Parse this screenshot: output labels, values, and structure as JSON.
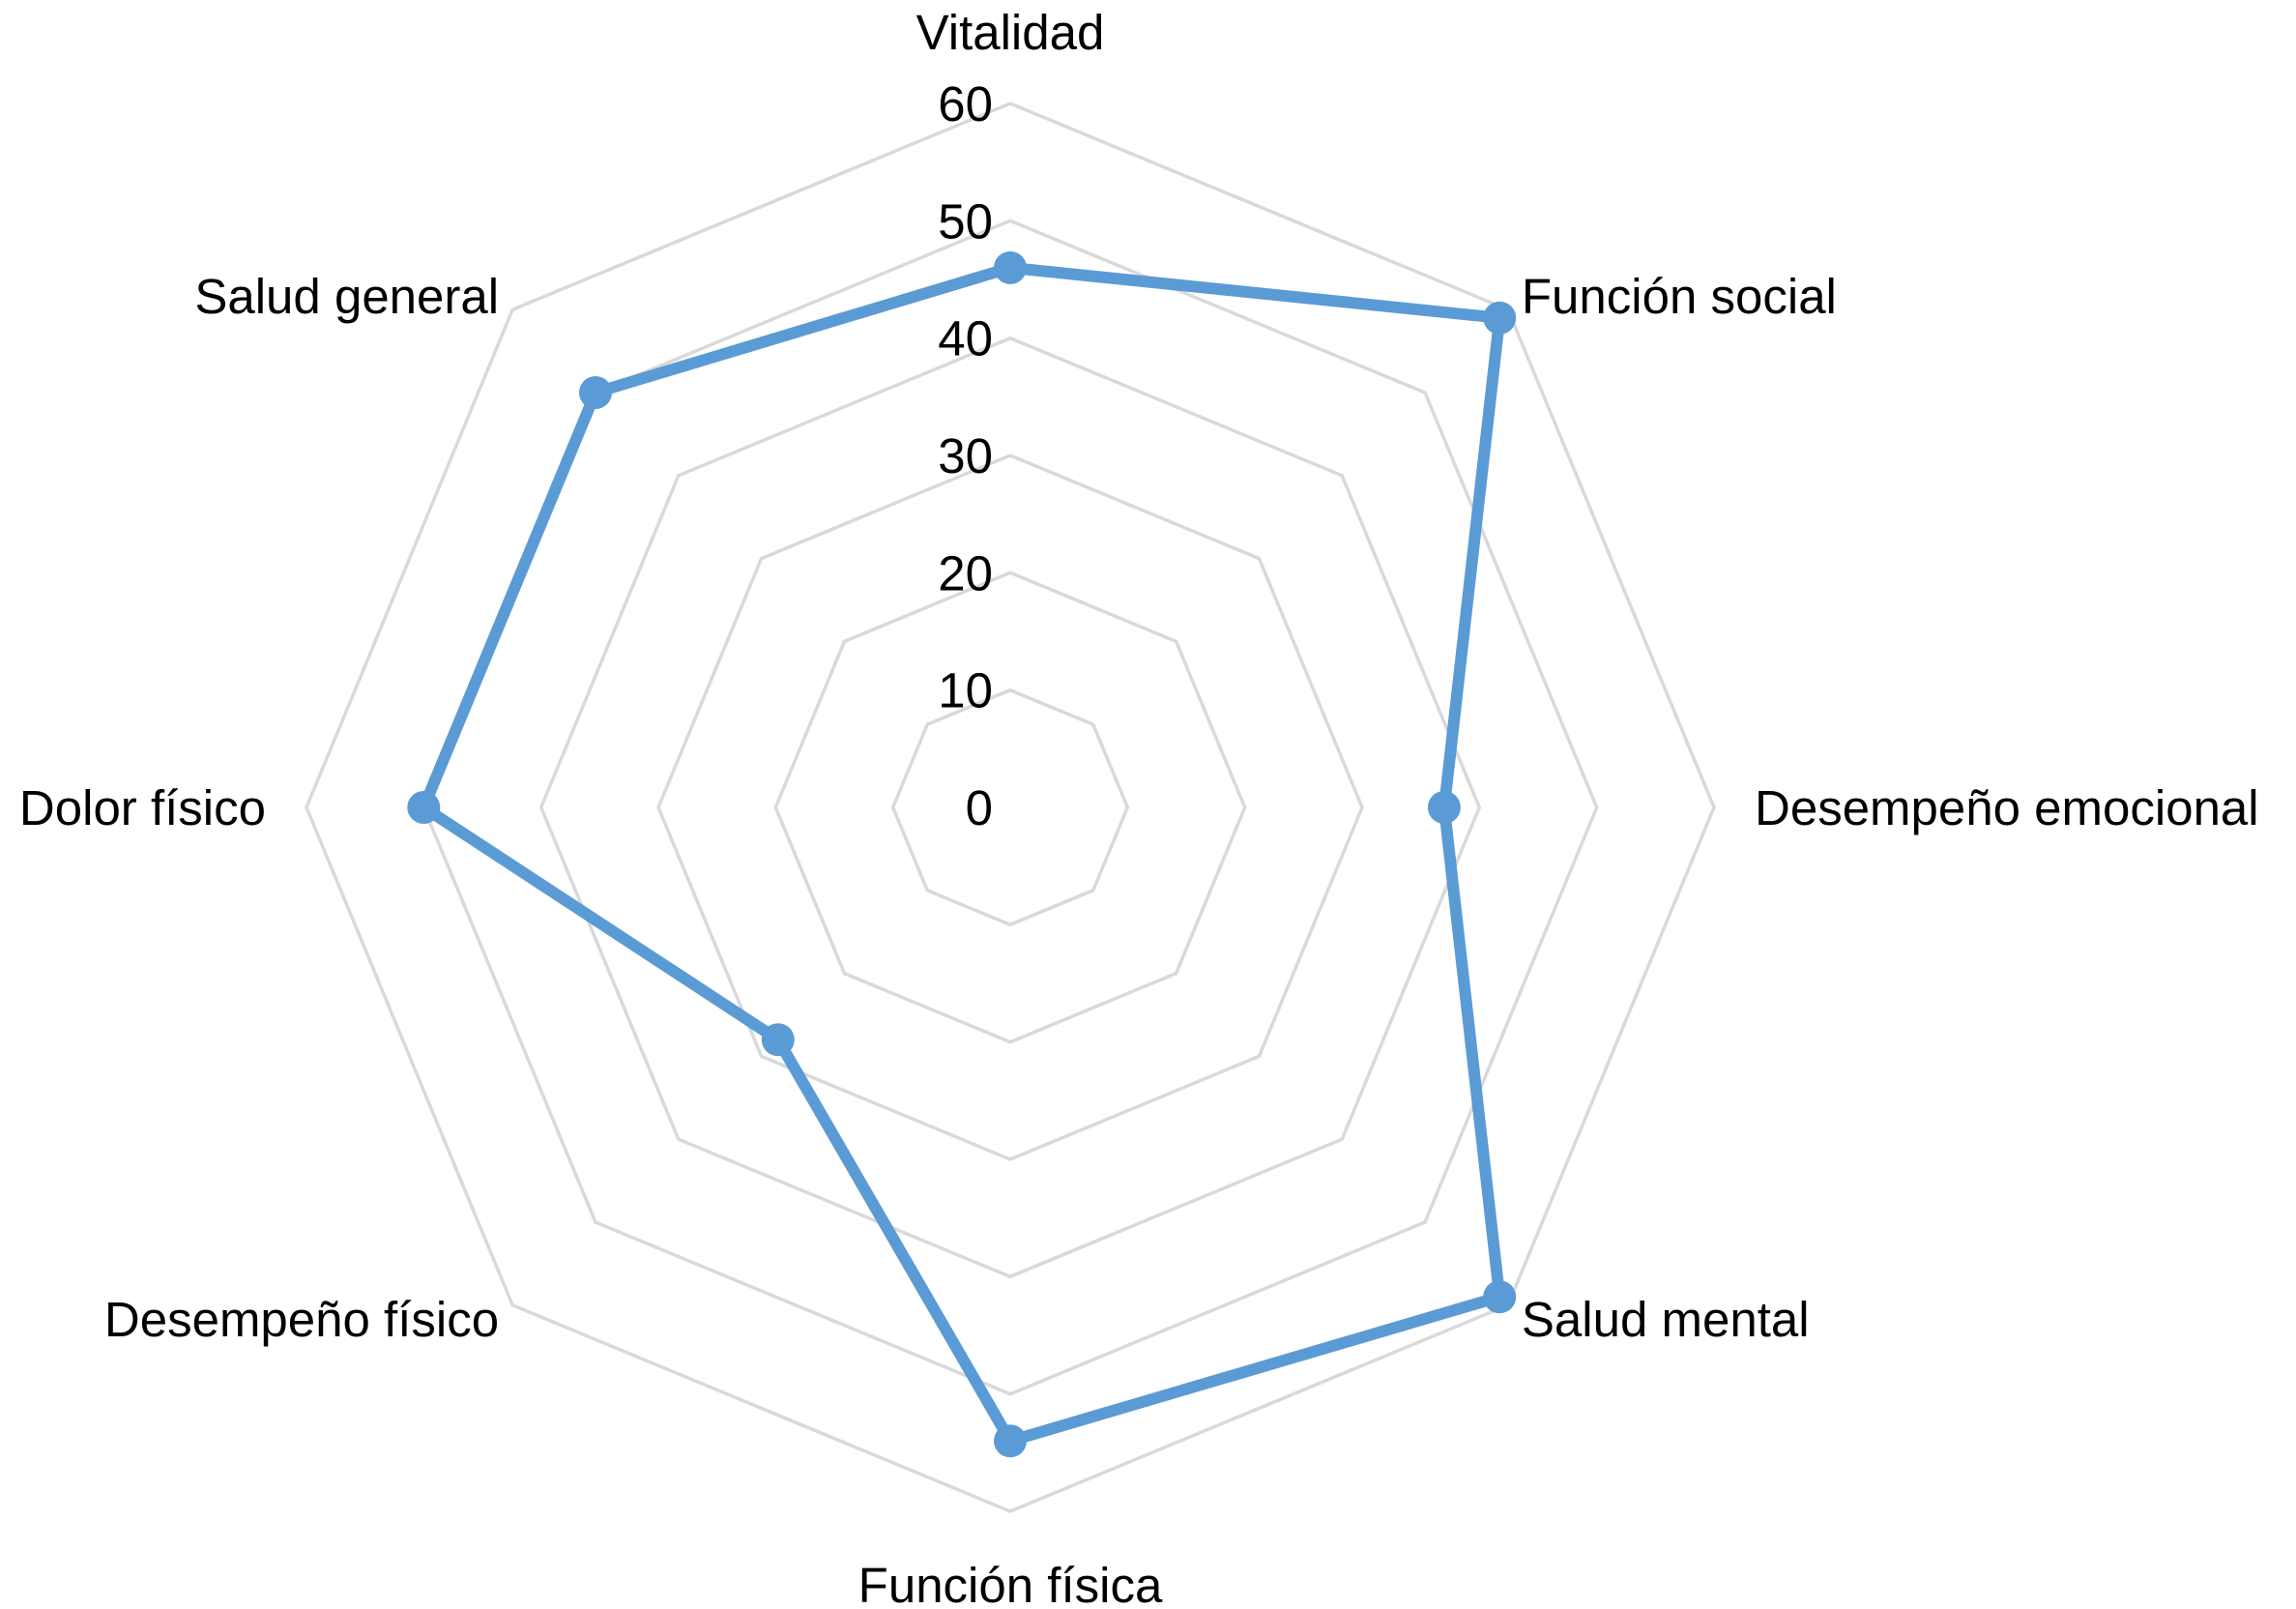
{
  "chart_data": {
    "type": "radar",
    "categories": [
      "Vitalidad",
      "Función social",
      "Desempeño emocional",
      "Salud mental",
      "Función física",
      "Desempeño físico",
      "Dolor físico",
      "Salud general"
    ],
    "series": [
      {
        "values": [
          46,
          59,
          37,
          59,
          54,
          28,
          50,
          50
        ]
      }
    ],
    "rlim": [
      0,
      60
    ],
    "ticks": [
      "0",
      "10",
      "20",
      "30",
      "40",
      "50",
      "60"
    ],
    "grid": true,
    "series_color": "#5b9bd5",
    "grid_color": "#d9d9d9"
  }
}
